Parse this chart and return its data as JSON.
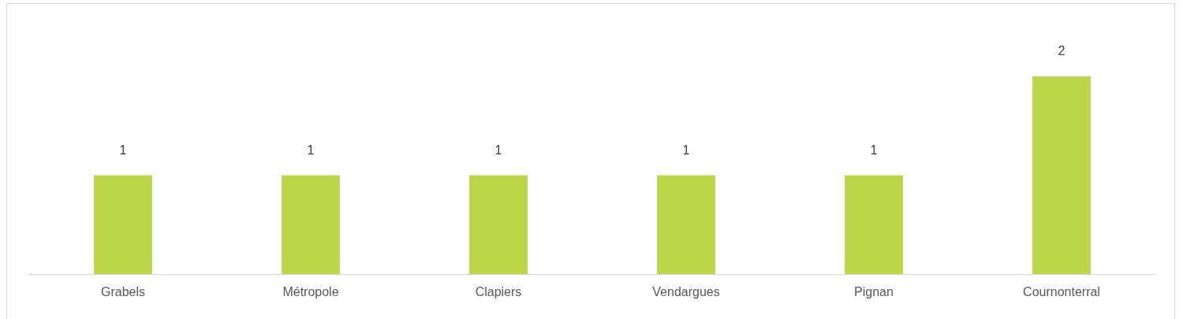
{
  "chart_data": {
    "type": "bar",
    "categories": [
      "Grabels",
      "Métropole",
      "Clapiers",
      "Vendargues",
      "Pignan",
      "Cournonterral"
    ],
    "values": [
      1,
      1,
      1,
      1,
      1,
      2
    ],
    "color": "#bdd548",
    "data_labels": true
  }
}
